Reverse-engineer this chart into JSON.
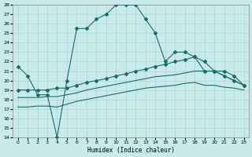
{
  "xlabel": "Humidex (Indice chaleur)",
  "xlim": [
    -0.5,
    23.5
  ],
  "ylim": [
    14,
    28
  ],
  "xticks": [
    0,
    1,
    2,
    3,
    4,
    5,
    6,
    7,
    8,
    9,
    10,
    11,
    12,
    13,
    14,
    15,
    16,
    17,
    18,
    19,
    20,
    21,
    22,
    23
  ],
  "yticks": [
    14,
    15,
    16,
    17,
    18,
    19,
    20,
    21,
    22,
    23,
    24,
    25,
    26,
    27,
    28
  ],
  "background_color": "#c9eaea",
  "grid_color": "#a8d5d5",
  "line_color": "#1a6b6b",
  "line1_x": [
    0,
    1,
    2,
    3,
    4,
    5,
    6,
    7,
    8,
    9,
    10,
    11,
    12,
    13,
    14,
    15,
    16,
    17,
    18,
    19,
    20,
    21,
    22,
    23
  ],
  "line1_y": [
    21.5,
    20.5,
    18.5,
    18.5,
    14.0,
    20.0,
    25.5,
    25.5,
    26.5,
    27.0,
    28.0,
    28.0,
    28.0,
    26.5,
    25.0,
    22.0,
    23.0,
    23.0,
    22.5,
    21.0,
    21.0,
    20.5,
    20.0,
    19.5
  ],
  "line2_x": [
    0,
    1,
    2,
    3,
    4,
    5,
    6,
    7,
    8,
    9,
    10,
    11,
    12,
    13,
    14,
    15,
    16,
    17,
    18,
    19,
    20,
    21,
    22,
    23
  ],
  "line2_y": [
    19.0,
    19.0,
    19.0,
    19.0,
    19.2,
    19.2,
    19.5,
    19.8,
    20.0,
    20.2,
    20.5,
    20.7,
    21.0,
    21.2,
    21.5,
    21.7,
    22.0,
    22.2,
    22.5,
    22.0,
    21.0,
    21.0,
    20.5,
    19.5
  ],
  "line3_x": [
    0,
    1,
    2,
    3,
    4,
    5,
    6,
    7,
    8,
    9,
    10,
    11,
    12,
    13,
    14,
    15,
    16,
    17,
    18,
    19,
    20,
    21,
    22,
    23
  ],
  "line3_y": [
    18.2,
    18.2,
    18.2,
    18.3,
    18.3,
    18.5,
    18.7,
    19.0,
    19.2,
    19.4,
    19.6,
    19.8,
    20.0,
    20.2,
    20.4,
    20.5,
    20.6,
    20.8,
    21.0,
    21.0,
    21.0,
    20.5,
    20.0,
    19.5
  ],
  "line4_x": [
    0,
    1,
    2,
    3,
    4,
    5,
    6,
    7,
    8,
    9,
    10,
    11,
    12,
    13,
    14,
    15,
    16,
    17,
    18,
    19,
    20,
    21,
    22,
    23
  ],
  "line4_y": [
    17.2,
    17.2,
    17.3,
    17.3,
    17.2,
    17.5,
    17.8,
    18.0,
    18.2,
    18.4,
    18.6,
    18.8,
    19.0,
    19.2,
    19.3,
    19.4,
    19.5,
    19.7,
    19.8,
    19.5,
    19.5,
    19.3,
    19.2,
    19.0
  ],
  "marker_indices_line1": [
    0,
    1,
    2,
    3,
    4,
    5,
    6,
    7,
    8,
    9,
    10,
    11,
    12,
    13,
    14,
    15,
    16,
    17,
    18,
    19,
    20,
    21,
    22,
    23
  ],
  "marker_indices_line2": [
    0,
    1,
    2,
    3,
    4,
    5,
    6,
    7,
    8,
    9,
    10,
    11,
    12,
    13,
    14,
    15,
    16,
    17,
    18,
    19,
    20,
    21,
    22,
    23
  ]
}
